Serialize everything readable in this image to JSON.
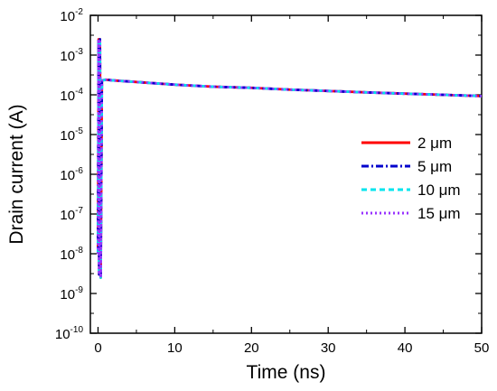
{
  "chart_data": {
    "type": "line",
    "title": "",
    "xlabel": "Time (ns)",
    "ylabel": "Drain current (A)",
    "xlim": [
      -1,
      50
    ],
    "ylim_log10": [
      -10,
      -2
    ],
    "yscale": "log",
    "x_ticks": [
      0,
      10,
      20,
      30,
      40,
      50
    ],
    "x_tick_labels": [
      "0",
      "10",
      "20",
      "30",
      "40",
      "50"
    ],
    "y_ticks": [
      {
        "base": "10",
        "exp": "-2",
        "value": 0.01
      },
      {
        "base": "10",
        "exp": "-3",
        "value": 0.001
      },
      {
        "base": "10",
        "exp": "-4",
        "value": 0.0001
      },
      {
        "base": "10",
        "exp": "-5",
        "value": 1e-05
      },
      {
        "base": "10",
        "exp": "-6",
        "value": 1e-06
      },
      {
        "base": "10",
        "exp": "-7",
        "value": 1e-07
      },
      {
        "base": "10",
        "exp": "-8",
        "value": 1e-08
      },
      {
        "base": "10",
        "exp": "-9",
        "value": 1e-09
      },
      {
        "base": "10",
        "exp": "-10",
        "value": 1e-10
      }
    ],
    "grid": false,
    "legend_position": "right-middle",
    "series": [
      {
        "name": "2 μm",
        "color": "#ff0000",
        "dash": "solid",
        "x": [
          0,
          0.08,
          0.15,
          0.25,
          0.35,
          0.5,
          1,
          2,
          5,
          10,
          15,
          20,
          25,
          30,
          35,
          40,
          45,
          50
        ],
        "y": [
          1e-08,
          0.0025,
          3e-09,
          0.0025,
          2.5e-09,
          0.00023,
          0.00024,
          0.00023,
          0.00021,
          0.00018,
          0.00016,
          0.00015,
          0.000135,
          0.000125,
          0.000115,
          0.000107,
          0.0001,
          9.3e-05
        ]
      },
      {
        "name": "5 μm",
        "color": "#0000cc",
        "dash": "dashdot",
        "x": [
          0,
          0.08,
          0.15,
          0.25,
          0.35,
          0.5,
          1,
          2,
          5,
          10,
          15,
          20,
          25,
          30,
          35,
          40,
          45,
          50
        ],
        "y": [
          1e-08,
          0.0025,
          3e-09,
          0.0025,
          2.5e-09,
          0.00023,
          0.00024,
          0.00023,
          0.00021,
          0.00018,
          0.00016,
          0.00015,
          0.000135,
          0.000125,
          0.000115,
          0.000107,
          0.0001,
          9.3e-05
        ]
      },
      {
        "name": "10 μm",
        "color": "#00e5ee",
        "dash": "dash",
        "x": [
          0,
          0.08,
          0.15,
          0.25,
          0.35,
          0.5,
          1,
          2,
          5,
          10,
          15,
          20,
          25,
          30,
          35,
          40,
          45,
          50
        ],
        "y": [
          1e-08,
          0.0025,
          3e-09,
          0.0025,
          2.5e-09,
          0.00023,
          0.00024,
          0.00023,
          0.00021,
          0.00018,
          0.00016,
          0.00015,
          0.000135,
          0.000125,
          0.000115,
          0.000107,
          0.0001,
          9.3e-05
        ]
      },
      {
        "name": "15 μm",
        "color": "#9933ff",
        "dash": "dot",
        "x": [
          0,
          0.08,
          0.15,
          0.25,
          0.35,
          0.5,
          1,
          2,
          5,
          10,
          15,
          20,
          25,
          30,
          35,
          40,
          45,
          50
        ],
        "y": [
          1e-08,
          0.0025,
          3e-09,
          0.0025,
          2.5e-09,
          0.00023,
          0.00024,
          0.00023,
          0.00021,
          0.00018,
          0.00016,
          0.00015,
          0.000135,
          0.000125,
          0.000115,
          0.000107,
          0.0001,
          9.3e-05
        ]
      }
    ]
  }
}
